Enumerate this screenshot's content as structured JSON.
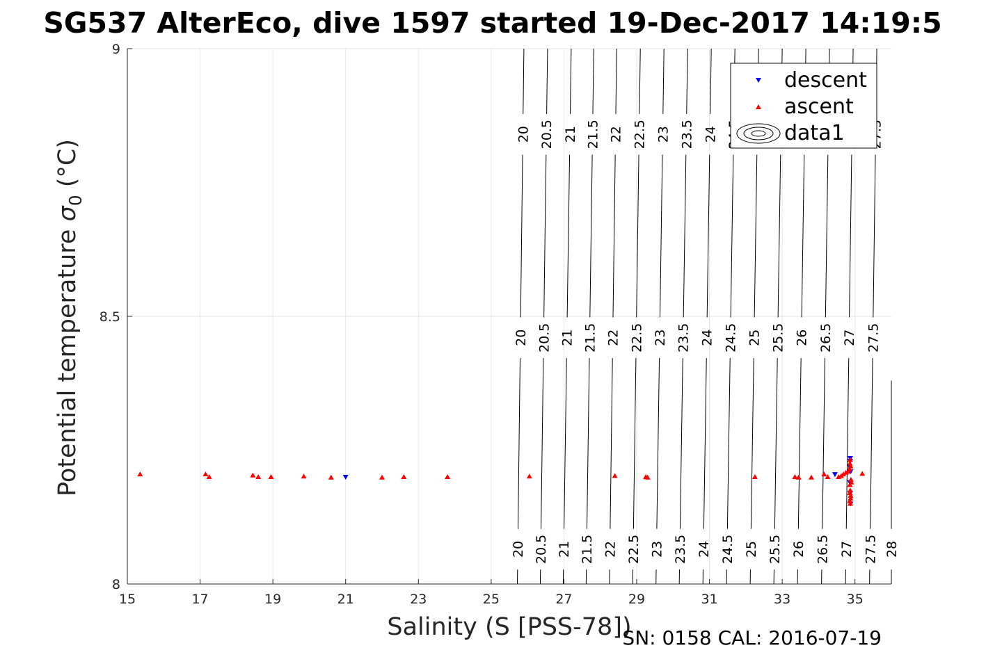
{
  "chart_data": {
    "type": "scatter",
    "title": "SG537 AlterEco, dive 1597 started 19-Dec-2017 14:19:5",
    "xlabel": "Salinity (S [PSS-78])",
    "ylabel_main": "Potential temperature ",
    "ylabel_sigma": "σ",
    "ylabel_sub": "0",
    "ylabel_unit": " (°C)",
    "xlim": [
      15,
      36
    ],
    "ylim": [
      8,
      9
    ],
    "x_ticks": [
      "15",
      "17",
      "19",
      "21",
      "23",
      "25",
      "27",
      "29",
      "31",
      "33",
      "35"
    ],
    "y_ticks": [
      "8",
      "8.5",
      "9"
    ],
    "grid": true,
    "legend_position": "top-right",
    "series": [
      {
        "name": "descent",
        "marker": "triangle-down",
        "color": "#0000ff",
        "points": [
          [
            21.0,
            8.2
          ],
          [
            34.45,
            8.205
          ],
          [
            34.85,
            8.22
          ],
          [
            34.87,
            8.23
          ],
          [
            34.88,
            8.21
          ],
          [
            34.86,
            8.19
          ],
          [
            34.87,
            8.17
          ],
          [
            34.88,
            8.15
          ],
          [
            34.87,
            8.235
          ]
        ]
      },
      {
        "name": "ascent",
        "marker": "triangle-up",
        "color": "#ff0000",
        "points": [
          [
            15.35,
            8.205
          ],
          [
            17.15,
            8.205
          ],
          [
            17.25,
            8.2
          ],
          [
            18.45,
            8.203
          ],
          [
            18.6,
            8.2
          ],
          [
            18.95,
            8.2
          ],
          [
            19.85,
            8.201
          ],
          [
            20.6,
            8.199
          ],
          [
            22.0,
            8.199
          ],
          [
            22.6,
            8.2
          ],
          [
            23.8,
            8.2
          ],
          [
            26.05,
            8.201
          ],
          [
            28.4,
            8.202
          ],
          [
            29.25,
            8.2
          ],
          [
            29.3,
            8.199
          ],
          [
            32.25,
            8.2
          ],
          [
            33.35,
            8.2
          ],
          [
            33.45,
            8.199
          ],
          [
            33.8,
            8.199
          ],
          [
            34.15,
            8.205
          ],
          [
            34.25,
            8.2
          ],
          [
            34.55,
            8.2
          ],
          [
            34.62,
            8.202
          ],
          [
            34.68,
            8.205
          ],
          [
            34.75,
            8.208
          ],
          [
            34.82,
            8.21
          ],
          [
            34.85,
            8.215
          ],
          [
            34.86,
            8.225
          ],
          [
            34.87,
            8.232
          ],
          [
            34.88,
            8.22
          ],
          [
            34.89,
            8.195
          ],
          [
            34.86,
            8.185
          ],
          [
            34.87,
            8.175
          ],
          [
            34.88,
            8.165
          ],
          [
            34.86,
            8.155
          ],
          [
            34.87,
            8.15
          ],
          [
            34.88,
            8.16
          ],
          [
            34.86,
            8.17
          ],
          [
            34.9,
            8.19
          ],
          [
            35.2,
            8.206
          ]
        ]
      },
      {
        "name": "data1",
        "type": "contour",
        "levels": [
          "20",
          "20.5",
          "21",
          "21.5",
          "22",
          "22.5",
          "23",
          "23.5",
          "24",
          "24.5",
          "25",
          "25.5",
          "26",
          "26.5",
          "27",
          "27.5",
          "28"
        ],
        "level_values": [
          20,
          20.5,
          21,
          21.5,
          22,
          22.5,
          23,
          23.5,
          24,
          24.5,
          25,
          25.5,
          26,
          26.5,
          27,
          27.5,
          28
        ],
        "salinity_at_bottom": [
          25.72,
          26.35,
          26.98,
          27.61,
          28.25,
          28.89,
          29.53,
          30.17,
          30.82,
          31.47,
          32.12,
          32.77,
          33.42,
          34.08,
          34.74,
          35.4,
          36.0
        ],
        "salinity_at_top": [
          25.9,
          26.55,
          27.2,
          27.82,
          28.45,
          29.1,
          29.75,
          30.4,
          31.05,
          31.7,
          32.35,
          33.0,
          33.65,
          34.3,
          34.95,
          35.6
        ]
      }
    ]
  },
  "footer": "SN: 0158  CAL: 2016-07-19"
}
